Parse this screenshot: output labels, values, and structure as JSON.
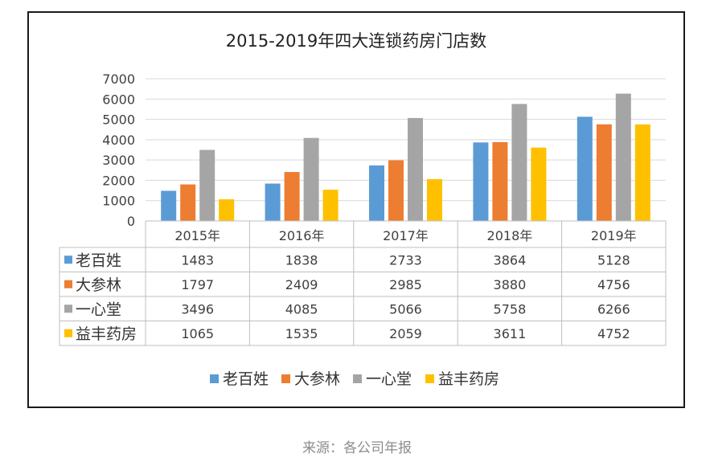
{
  "chart_data": {
    "type": "bar",
    "title": "2015-2019年四大连锁药房门店数",
    "categories": [
      "2015年",
      "2016年",
      "2017年",
      "2018年",
      "2019年"
    ],
    "series": [
      {
        "name": "老百姓",
        "color": "#5b9bd5",
        "values": [
          1483,
          1838,
          2733,
          3864,
          5128
        ]
      },
      {
        "name": "大参林",
        "color": "#ed7d31",
        "values": [
          1797,
          2409,
          2985,
          3880,
          4756
        ]
      },
      {
        "name": "一心堂",
        "color": "#a5a5a5",
        "values": [
          3496,
          4085,
          5066,
          5758,
          6266
        ]
      },
      {
        "name": "益丰药房",
        "color": "#ffc000",
        "values": [
          1065,
          1535,
          2059,
          3611,
          4752
        ]
      }
    ],
    "ylim": [
      0,
      7000
    ],
    "yticks": [
      0,
      1000,
      2000,
      3000,
      4000,
      5000,
      6000,
      7000
    ],
    "grid": true,
    "legend": "bottom",
    "data_table": true
  },
  "footer": {
    "source": "来源：各公司年报"
  }
}
